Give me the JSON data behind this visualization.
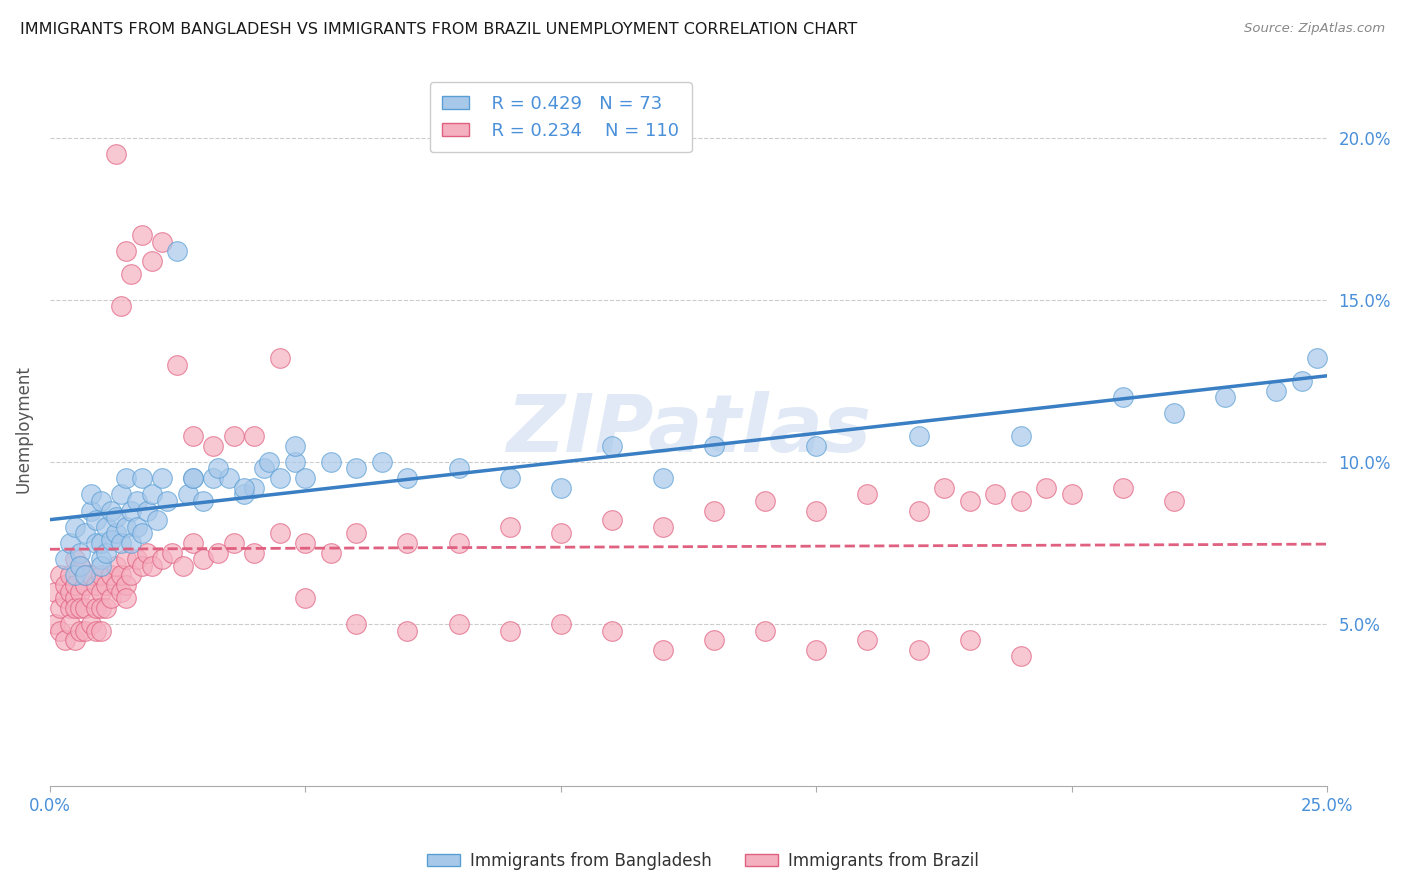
{
  "title": "IMMIGRANTS FROM BANGLADESH VS IMMIGRANTS FROM BRAZIL UNEMPLOYMENT CORRELATION CHART",
  "source": "Source: ZipAtlas.com",
  "ylabel": "Unemployment",
  "xlim": [
    0.0,
    0.25
  ],
  "ylim": [
    0.0,
    0.22
  ],
  "xticks": [
    0.0,
    0.05,
    0.1,
    0.15,
    0.2,
    0.25
  ],
  "yticks": [
    0.05,
    0.1,
    0.15,
    0.2
  ],
  "bangladesh_color": "#a8c8ea",
  "brazil_color": "#f5b0c0",
  "bangladesh_edge_color": "#5a9fd4",
  "brazil_edge_color": "#e06080",
  "bangladesh_line_color": "#3a7fc4",
  "brazil_line_color": "#e06080",
  "label_color": "#4a90d9",
  "R_bangladesh": 0.429,
  "N_bangladesh": 73,
  "R_brazil": 0.234,
  "N_brazil": 110,
  "legend_label_bangladesh": "Immigrants from Bangladesh",
  "legend_label_brazil": "Immigrants from Brazil",
  "watermark": "ZIPatlas",
  "grid_color": "#cccccc",
  "bangladesh_x": [
    0.003,
    0.004,
    0.005,
    0.005,
    0.006,
    0.006,
    0.007,
    0.007,
    0.008,
    0.008,
    0.009,
    0.009,
    0.01,
    0.01,
    0.01,
    0.01,
    0.011,
    0.011,
    0.012,
    0.012,
    0.013,
    0.013,
    0.014,
    0.014,
    0.015,
    0.015,
    0.016,
    0.016,
    0.017,
    0.017,
    0.018,
    0.018,
    0.019,
    0.02,
    0.021,
    0.022,
    0.023,
    0.025,
    0.027,
    0.028,
    0.03,
    0.032,
    0.035,
    0.038,
    0.04,
    0.042,
    0.045,
    0.048,
    0.05,
    0.055,
    0.06,
    0.065,
    0.07,
    0.08,
    0.09,
    0.1,
    0.11,
    0.12,
    0.13,
    0.15,
    0.17,
    0.19,
    0.21,
    0.22,
    0.23,
    0.24,
    0.245,
    0.248,
    0.028,
    0.033,
    0.038,
    0.043,
    0.048
  ],
  "bangladesh_y": [
    0.07,
    0.075,
    0.065,
    0.08,
    0.072,
    0.068,
    0.078,
    0.065,
    0.085,
    0.09,
    0.075,
    0.082,
    0.07,
    0.075,
    0.068,
    0.088,
    0.08,
    0.072,
    0.076,
    0.085,
    0.078,
    0.083,
    0.075,
    0.09,
    0.08,
    0.095,
    0.085,
    0.075,
    0.088,
    0.08,
    0.095,
    0.078,
    0.085,
    0.09,
    0.082,
    0.095,
    0.088,
    0.165,
    0.09,
    0.095,
    0.088,
    0.095,
    0.095,
    0.09,
    0.092,
    0.098,
    0.095,
    0.1,
    0.095,
    0.1,
    0.098,
    0.1,
    0.095,
    0.098,
    0.095,
    0.092,
    0.105,
    0.095,
    0.105,
    0.105,
    0.108,
    0.108,
    0.12,
    0.115,
    0.12,
    0.122,
    0.125,
    0.132,
    0.095,
    0.098,
    0.092,
    0.1,
    0.105
  ],
  "brazil_x": [
    0.001,
    0.001,
    0.002,
    0.002,
    0.002,
    0.003,
    0.003,
    0.003,
    0.004,
    0.004,
    0.004,
    0.004,
    0.005,
    0.005,
    0.005,
    0.005,
    0.005,
    0.006,
    0.006,
    0.006,
    0.006,
    0.007,
    0.007,
    0.007,
    0.007,
    0.008,
    0.008,
    0.008,
    0.009,
    0.009,
    0.009,
    0.01,
    0.01,
    0.01,
    0.01,
    0.011,
    0.011,
    0.012,
    0.012,
    0.013,
    0.013,
    0.014,
    0.014,
    0.015,
    0.015,
    0.015,
    0.016,
    0.017,
    0.018,
    0.019,
    0.02,
    0.022,
    0.024,
    0.026,
    0.028,
    0.03,
    0.033,
    0.036,
    0.04,
    0.045,
    0.05,
    0.055,
    0.06,
    0.07,
    0.08,
    0.09,
    0.1,
    0.11,
    0.12,
    0.13,
    0.14,
    0.15,
    0.16,
    0.17,
    0.175,
    0.18,
    0.185,
    0.19,
    0.195,
    0.2,
    0.21,
    0.22,
    0.013,
    0.014,
    0.015,
    0.016,
    0.018,
    0.02,
    0.022,
    0.025,
    0.028,
    0.032,
    0.036,
    0.04,
    0.045,
    0.05,
    0.06,
    0.07,
    0.08,
    0.09,
    0.1,
    0.11,
    0.12,
    0.13,
    0.14,
    0.15,
    0.16,
    0.17,
    0.18,
    0.19
  ],
  "brazil_y": [
    0.05,
    0.06,
    0.055,
    0.065,
    0.048,
    0.058,
    0.062,
    0.045,
    0.055,
    0.06,
    0.065,
    0.05,
    0.058,
    0.062,
    0.07,
    0.055,
    0.045,
    0.06,
    0.068,
    0.055,
    0.048,
    0.062,
    0.055,
    0.065,
    0.048,
    0.058,
    0.065,
    0.05,
    0.062,
    0.055,
    0.048,
    0.06,
    0.065,
    0.055,
    0.048,
    0.062,
    0.055,
    0.065,
    0.058,
    0.062,
    0.068,
    0.06,
    0.065,
    0.07,
    0.062,
    0.058,
    0.065,
    0.07,
    0.068,
    0.072,
    0.068,
    0.07,
    0.072,
    0.068,
    0.075,
    0.07,
    0.072,
    0.075,
    0.072,
    0.078,
    0.075,
    0.072,
    0.078,
    0.075,
    0.075,
    0.08,
    0.078,
    0.082,
    0.08,
    0.085,
    0.088,
    0.085,
    0.09,
    0.085,
    0.092,
    0.088,
    0.09,
    0.088,
    0.092,
    0.09,
    0.092,
    0.088,
    0.195,
    0.148,
    0.165,
    0.158,
    0.17,
    0.162,
    0.168,
    0.13,
    0.108,
    0.105,
    0.108,
    0.108,
    0.132,
    0.058,
    0.05,
    0.048,
    0.05,
    0.048,
    0.05,
    0.048,
    0.042,
    0.045,
    0.048,
    0.042,
    0.045,
    0.042,
    0.045,
    0.04
  ]
}
